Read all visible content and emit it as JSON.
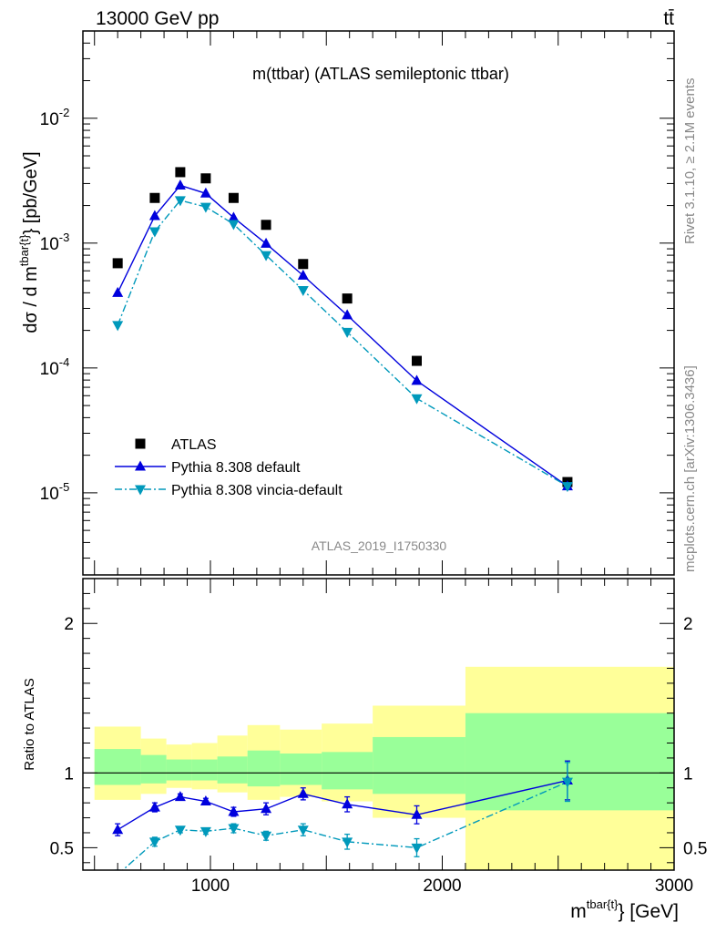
{
  "header": {
    "energy_label": "13000 GeV pp",
    "process_label": "tt̄"
  },
  "side_labels": {
    "rivet": "Rivet 3.1.10, ≥ 2.1M events",
    "mcplots": "mcplots.cern.ch [arXiv:1306.3436]"
  },
  "colors": {
    "data": "#000000",
    "pythia_default": "#0000dd",
    "pythia_vincia": "#0099bb",
    "band_yellow": "#ffff99",
    "band_green": "#99ff99"
  },
  "chart_data": [
    {
      "type": "scatter",
      "title": "m(ttbar) (ATLAS semileptonic ttbar)",
      "analysis_label": "ATLAS_2019_I1750330",
      "ylabel_main": "dσ / d m",
      "ylabel_sup": "tbar{t}",
      "ylabel_unit": "} [pb/GeV]",
      "yscale": "log",
      "ylim": [
        2.2e-06,
        0.05
      ],
      "xlim": [
        450,
        3000
      ],
      "y_tick_labels": [
        "10",
        "10",
        "10",
        "10"
      ],
      "y_tick_exps": [
        "-2",
        "-3",
        "-4",
        "-5"
      ],
      "y_tick_values": [
        0.01,
        0.001,
        0.0001,
        1e-05
      ],
      "legend_position": "bottom-left",
      "series": [
        {
          "name": "ATLAS",
          "marker": "square",
          "x": [
            600,
            760,
            870,
            980,
            1100,
            1240,
            1400,
            1590,
            1890,
            2540
          ],
          "y": [
            0.00069,
            0.0023,
            0.0037,
            0.0033,
            0.0023,
            0.0014,
            0.00068,
            0.00036,
            0.000114,
            1.22e-05
          ]
        },
        {
          "name": "Pythia 8.308 default",
          "marker": "triangle-up",
          "line": "solid",
          "x": [
            600,
            760,
            870,
            980,
            1100,
            1240,
            1400,
            1590,
            1890,
            2540
          ],
          "y": [
            0.0004,
            0.00165,
            0.0029,
            0.0025,
            0.0016,
            0.00099,
            0.00055,
            0.000265,
            7.9e-05,
            1.13e-05
          ]
        },
        {
          "name": "Pythia 8.308 vincia-default",
          "marker": "triangle-down",
          "line": "dashdot",
          "x": [
            600,
            760,
            870,
            980,
            1100,
            1240,
            1400,
            1590,
            1890,
            2540
          ],
          "y": [
            0.00022,
            0.00124,
            0.0022,
            0.00195,
            0.00142,
            0.0008,
            0.00042,
            0.000194,
            5.7e-05,
            1.13e-05
          ]
        }
      ]
    },
    {
      "type": "scatter",
      "ylabel": "Ratio to ATLAS",
      "xlabel_main": "m",
      "xlabel_sup": "tbar{t}",
      "xlabel_unit": "} [GeV]",
      "ylim": [
        0.35,
        2.3
      ],
      "xlim": [
        450,
        3000
      ],
      "y_tick_labels": [
        "2",
        "1",
        "0.5"
      ],
      "y_tick_values": [
        2,
        1,
        0.5
      ],
      "x_tick_labels": [
        "1000",
        "2000",
        "3000"
      ],
      "x_tick_values": [
        1000,
        2000,
        3000
      ],
      "reference_line": 1,
      "bins": [
        {
          "lo": 500,
          "hi": 700,
          "green": [
            0.92,
            1.16
          ],
          "yellow": [
            0.82,
            1.31
          ]
        },
        {
          "lo": 700,
          "hi": 810,
          "green": [
            0.93,
            1.12
          ],
          "yellow": [
            0.86,
            1.23
          ]
        },
        {
          "lo": 810,
          "hi": 920,
          "green": [
            0.95,
            1.09
          ],
          "yellow": [
            0.9,
            1.19
          ]
        },
        {
          "lo": 920,
          "hi": 1030,
          "green": [
            0.95,
            1.09
          ],
          "yellow": [
            0.89,
            1.2
          ]
        },
        {
          "lo": 1030,
          "hi": 1160,
          "green": [
            0.93,
            1.11
          ],
          "yellow": [
            0.87,
            1.25
          ]
        },
        {
          "lo": 1160,
          "hi": 1300,
          "green": [
            0.91,
            1.15
          ],
          "yellow": [
            0.82,
            1.32
          ]
        },
        {
          "lo": 1300,
          "hi": 1480,
          "green": [
            0.92,
            1.13
          ],
          "yellow": [
            0.84,
            1.29
          ]
        },
        {
          "lo": 1480,
          "hi": 1700,
          "green": [
            0.89,
            1.14
          ],
          "yellow": [
            0.81,
            1.33
          ]
        },
        {
          "lo": 1700,
          "hi": 2100,
          "green": [
            0.86,
            1.24
          ],
          "yellow": [
            0.7,
            1.45
          ]
        },
        {
          "lo": 2100,
          "hi": 3000,
          "green": [
            0.75,
            1.4
          ],
          "yellow": [
            0.3,
            1.71
          ]
        }
      ],
      "series": [
        {
          "name": "Pythia 8.308 default",
          "marker": "triangle-up",
          "line": "solid",
          "x": [
            600,
            760,
            870,
            980,
            1100,
            1240,
            1400,
            1590,
            1890,
            2540
          ],
          "y": [
            0.62,
            0.77,
            0.84,
            0.81,
            0.74,
            0.76,
            0.86,
            0.79,
            0.72,
            0.95
          ],
          "err": [
            0.04,
            0.03,
            0.02,
            0.02,
            0.03,
            0.04,
            0.04,
            0.05,
            0.06,
            0.13
          ]
        },
        {
          "name": "Pythia 8.308 vincia-default",
          "marker": "triangle-down",
          "line": "dashdot",
          "x": [
            600,
            760,
            870,
            980,
            1100,
            1240,
            1400,
            1590,
            1890,
            2540
          ],
          "y": [
            0.32,
            0.54,
            0.62,
            0.61,
            0.63,
            0.58,
            0.62,
            0.54,
            0.5,
            0.94
          ],
          "err": [
            0.03,
            0.03,
            0.02,
            0.02,
            0.03,
            0.03,
            0.04,
            0.05,
            0.06,
            0.13
          ]
        }
      ]
    }
  ]
}
